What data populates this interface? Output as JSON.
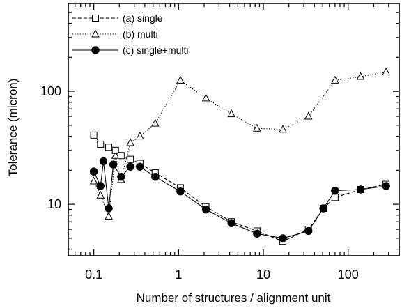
{
  "chart_data": {
    "type": "line",
    "title": "",
    "xlabel": "Number  of  structures  /  alignment  unit",
    "ylabel": "Tolerance  (micron)",
    "x_scale": "log",
    "y_scale": "log",
    "xlim": [
      0.05,
      400
    ],
    "ylim": [
      3.5,
      600
    ],
    "x_ticks": [
      0.1,
      1,
      10,
      100
    ],
    "x_tick_labels": [
      "0.1",
      "1",
      "10",
      "100"
    ],
    "y_ticks": [
      10,
      100
    ],
    "y_tick_labels": [
      "10",
      "100"
    ],
    "grid": false,
    "legend_position": "top-left",
    "series": [
      {
        "name": "(a)  single",
        "marker": "square",
        "line_style": "dashed",
        "color": "#000000",
        "x": [
          0.1,
          0.12,
          0.15,
          0.18,
          0.21,
          0.27,
          0.35,
          0.53,
          1.05,
          2.1,
          4.2,
          8.4,
          17,
          34,
          51,
          70,
          140,
          280
        ],
        "y": [
          41,
          34,
          32,
          30,
          27,
          25,
          23,
          19,
          14,
          9.5,
          7,
          5.8,
          4.7,
          6,
          9.2,
          11.5,
          13.5,
          15
        ]
      },
      {
        "name": "(b)   multi",
        "marker": "triangle",
        "line_style": "dotted",
        "color": "#000000",
        "x": [
          0.1,
          0.12,
          0.15,
          0.18,
          0.21,
          0.27,
          0.35,
          0.53,
          1.05,
          2.1,
          4.2,
          8.4,
          17,
          34,
          70,
          140,
          280
        ],
        "y": [
          16,
          12,
          7.8,
          27,
          16.5,
          35,
          40,
          52,
          125,
          87,
          63,
          47,
          46,
          60,
          125,
          135,
          148
        ]
      },
      {
        "name": "(c)   single+multi",
        "marker": "circle-filled",
        "line_style": "solid",
        "color": "#000000",
        "x": [
          0.1,
          0.12,
          0.13,
          0.15,
          0.17,
          0.21,
          0.27,
          0.35,
          0.53,
          1.05,
          2.1,
          4.2,
          8.4,
          17,
          34,
          51,
          70,
          140,
          280
        ],
        "y": [
          19.5,
          14.5,
          24,
          9.2,
          22.5,
          17.5,
          21.5,
          21.5,
          17.5,
          13,
          9,
          6.8,
          5.5,
          5,
          5.8,
          9.2,
          13.2,
          13.5,
          14.5
        ]
      }
    ]
  }
}
